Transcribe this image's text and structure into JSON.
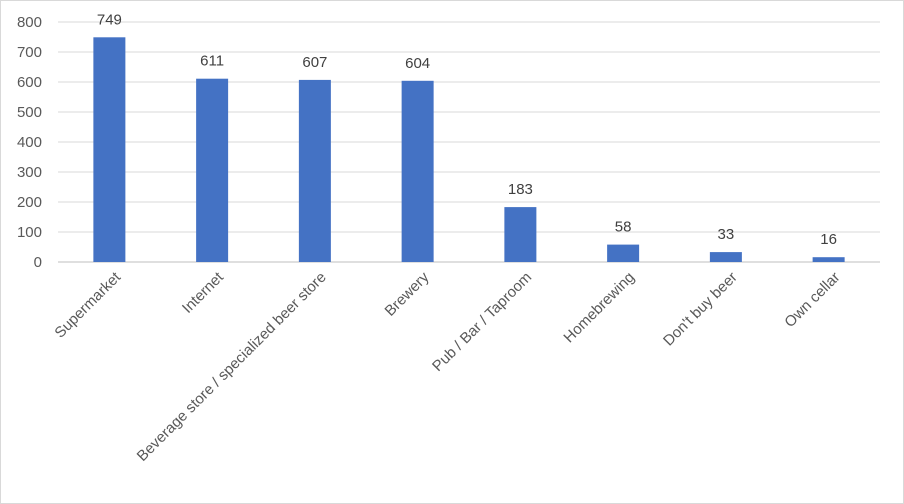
{
  "chart_data": {
    "type": "bar",
    "categories": [
      "Supermarket",
      "Internet",
      "Beverage store / specialized beer store",
      "Brewery",
      "Pub / Bar / Taproom",
      "Homebrewing",
      "Don't buy beer",
      "Own cellar"
    ],
    "values": [
      749,
      611,
      607,
      604,
      183,
      58,
      33,
      16
    ],
    "yticks": [
      "0",
      "100",
      "200",
      "300",
      "400",
      "500",
      "600",
      "700",
      "800"
    ],
    "ylim": [
      0,
      800
    ],
    "grid": true,
    "data_labels": true,
    "bar_color": "#4472c4",
    "title": "",
    "xlabel": "",
    "ylabel": ""
  }
}
